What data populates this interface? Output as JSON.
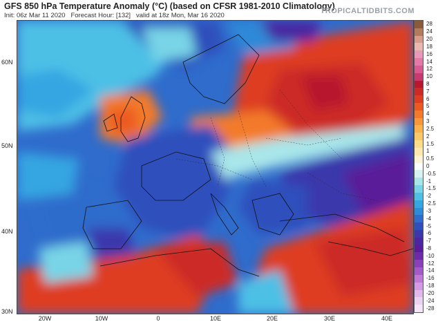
{
  "header": {
    "title": "GFS 850 hPa Temperature Anomaly (°C) (based on CFSR 1981-2010 Climatology)",
    "init": "Init: 06z Mar 11 2020",
    "forecast_hour": "Forecast Hour: [132]",
    "valid": "valid at 18z Mon, Mar 16 2020",
    "brand": "TROPICALTIDBITS.COM"
  },
  "axes": {
    "lat_labels": [
      "60N",
      "50N",
      "40N",
      "30N"
    ],
    "lon_labels": [
      "20W",
      "10W",
      "0",
      "10E",
      "20E",
      "30E",
      "40E"
    ]
  },
  "colorbar": {
    "labels": [
      "28",
      "24",
      "20",
      "18",
      "16",
      "14",
      "12",
      "10",
      "8",
      "7",
      "6",
      "5",
      "4",
      "3",
      "2.5",
      "2",
      "1.5",
      "1",
      "0.5",
      "0",
      "-0.5",
      "-1",
      "-1.5",
      "-2",
      "-2.5",
      "-3",
      "-4",
      "-5",
      "-6",
      "-7",
      "-8",
      "-10",
      "-12",
      "-14",
      "-16",
      "-18",
      "-20",
      "-24",
      "-28"
    ],
    "colors": [
      "#8a5a3c",
      "#b47a5c",
      "#d69d8a",
      "#e7b9b0",
      "#e69ab8",
      "#e27aa8",
      "#d85a92",
      "#c83a6e",
      "#b8182e",
      "#cc2a28",
      "#de3d22",
      "#ec5a22",
      "#f37a2a",
      "#f6983a",
      "#f8b24e",
      "#f9c86a",
      "#fbdc8a",
      "#fde9b0",
      "#fdf3d6",
      "#ffffff",
      "#d8f2f2",
      "#a8e6ea",
      "#78d4e6",
      "#4ec0e6",
      "#36a6e2",
      "#2f8ad8",
      "#2f6ccc",
      "#2f50bc",
      "#3b38ac",
      "#4a26a0",
      "#5a1c98",
      "#6e2aa8",
      "#8a40b8",
      "#a65ac8",
      "#c07ad6",
      "#d49ae2",
      "#e2b8ea",
      "#ecd2f2",
      "#f4e6f8"
    ]
  }
}
